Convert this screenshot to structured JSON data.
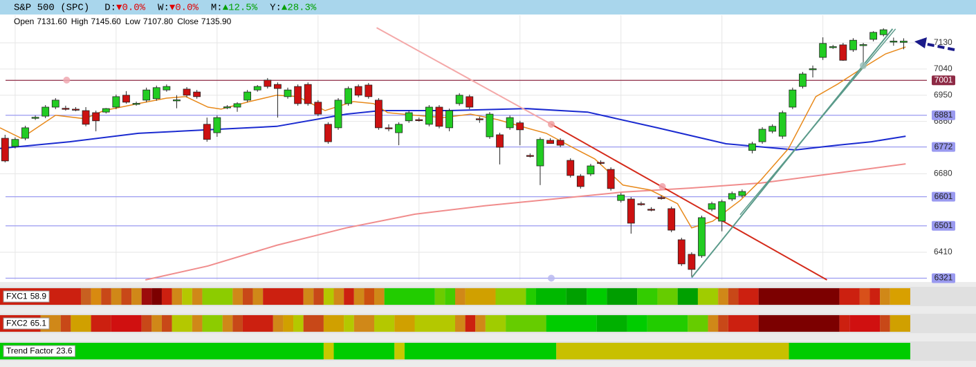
{
  "header": {
    "title": "S&P 500 (SPC)",
    "changes": [
      {
        "label": "D:",
        "arrow": "▼",
        "value": "0.0%",
        "color": "#e00000"
      },
      {
        "label": "W:",
        "arrow": "▼",
        "value": "0.0%",
        "color": "#e00000"
      },
      {
        "label": "M:",
        "arrow": "▲",
        "value": "12.5%",
        "color": "#00a000"
      },
      {
        "label": "Y:",
        "arrow": "▲",
        "value": "28.3%",
        "color": "#00a000"
      }
    ]
  },
  "ohlc": [
    {
      "label": "Open",
      "value": "7131.60"
    },
    {
      "label": "High",
      "value": "7145.60"
    },
    {
      "label": "Low",
      "value": "7107.80"
    },
    {
      "label": "Close",
      "value": "7135.90"
    }
  ],
  "chart_data": {
    "type": "candlestick",
    "xlim": [
      -0.5,
      91.3
    ],
    "ylim": [
      6315,
      7225
    ],
    "yticks": [
      6410,
      6680,
      6860,
      6950,
      7040,
      7130
    ],
    "grid": true,
    "xgrid": [
      1,
      11,
      21,
      31,
      41,
      51,
      61,
      71,
      81
    ],
    "up_color": "#22cc22",
    "down_color": "#cc1111",
    "open": [
      6802,
      6774,
      6802,
      6872,
      6878,
      6909,
      6905,
      6902,
      6897,
      6890,
      6892,
      6909,
      6950,
      6921,
      6933,
      6938,
      6968,
      6933,
      6971,
      6961,
      6850,
      6821,
      6909,
      6909,
      6933,
      6968,
      7002,
      6987,
      6945,
      6980,
      6987,
      6926,
      6850,
      6838,
      6921,
      6980,
      6985,
      6933,
      6838,
      6821,
      6862,
      6866,
      6850,
      6909,
      6838,
      6921,
      6945,
      6869,
      6807,
      6814,
      6838,
      6855,
      6743,
      6707,
      6795,
      6795,
      6726,
      6672,
      6679,
      6719,
      6695,
      6588,
      6593,
      6577,
      6558,
      6598,
      6560,
      6453,
      6403,
      6398,
      6558,
      6517,
      6593,
      6605,
      6760,
      6790,
      6826,
      6809,
      6909,
      6980,
      7040,
      7080,
      7116,
      7123,
      7106,
      7123,
      7142,
      7158,
      7135,
      7131.6
    ],
    "high": [
      6814,
      6805,
      6845,
      6880,
      6916,
      6940,
      6914,
      6909,
      6909,
      6897,
      6906,
      6952,
      6964,
      6928,
      6976,
      6983,
      6987,
      6950,
      6978,
      6968,
      6873,
      6880,
      6916,
      6926,
      6968,
      6985,
      7009,
      6994,
      6976,
      6987,
      6994,
      6933,
      6857,
      6940,
      6980,
      6987,
      6992,
      6940,
      6850,
      6857,
      6897,
      6873,
      6916,
      6916,
      6904,
      6957,
      6952,
      6876,
      6892,
      6821,
      6880,
      6862,
      6750,
      6805,
      6802,
      6802,
      6733,
      6679,
      6714,
      6726,
      6702,
      6614,
      6600,
      6584,
      6565,
      6605,
      6567,
      6460,
      6410,
      6536,
      6584,
      6591,
      6619,
      6626,
      6790,
      6840,
      6850,
      6897,
      6976,
      7030,
      7052,
      7149,
      7123,
      7130,
      7146,
      7130,
      7170,
      7180,
      7148,
      7145.6
    ],
    "low": [
      6719,
      6767,
      6795,
      6865,
      6871,
      6902,
      6897,
      6895,
      6843,
      6826,
      6887,
      6902,
      6921,
      6914,
      6926,
      6931,
      6962,
      6905,
      6943,
      6938,
      6790,
      6807,
      6902,
      6893,
      6926,
      6962,
      6973,
      6873,
      6938,
      6914,
      6914,
      6878,
      6783,
      6831,
      6914,
      6943,
      6938,
      6831,
      6826,
      6778,
      6855,
      6859,
      6843,
      6836,
      6826,
      6914,
      6902,
      6855,
      6800,
      6712,
      6831,
      6778,
      6736,
      6641,
      6783,
      6771,
      6667,
      6629,
      6672,
      6712,
      6622,
      6581,
      6474,
      6570,
      6551,
      6591,
      6479,
      6363,
      6327,
      6391,
      6551,
      6482,
      6586,
      6598,
      6750,
      6783,
      6819,
      6800,
      6902,
      6973,
      7011,
      7071,
      7109,
      7068,
      7099,
      7052,
      7135,
      7152,
      7120,
      7107.8
    ],
    "close": [
      6724,
      6798,
      6838,
      6874,
      6909,
      6933,
      6904,
      6901,
      6850,
      6862,
      6904,
      6945,
      6926,
      6922,
      6968,
      6976,
      6980,
      6934,
      6950,
      6945,
      6798,
      6873,
      6910,
      6921,
      6961,
      6980,
      6980,
      6973,
      6968,
      6921,
      6921,
      6885,
      6790,
      6933,
      6973,
      6950,
      6945,
      6838,
      6837,
      6850,
      6890,
      6865,
      6909,
      6843,
      6897,
      6950,
      6909,
      6868,
      6885,
      6771,
      6873,
      6831,
      6742,
      6798,
      6784,
      6778,
      6674,
      6636,
      6707,
      6718,
      6629,
      6607,
      6510,
      6576,
      6557,
      6597,
      6486,
      6370,
      6351,
      6529,
      6577,
      6584,
      6612,
      6619,
      6783,
      6833,
      6843,
      6890,
      6968,
      7023,
      7041,
      7128,
      7117,
      7070,
      7139,
      7124,
      7166,
      7175,
      7136,
      7135.9
    ],
    "levels": [
      {
        "value": 7001,
        "color": "#8e2a45",
        "text_color": "#ffffff"
      },
      {
        "value": 6881,
        "color": "#9a9af0",
        "text_color": "#222222"
      },
      {
        "value": 6772,
        "color": "#9a9af0",
        "text_color": "#222222"
      },
      {
        "value": 6601,
        "color": "#9a9af0",
        "text_color": "#222222"
      },
      {
        "value": 6501,
        "color": "#9a9af0",
        "text_color": "#222222"
      },
      {
        "value": 6321,
        "color": "#9a9af0",
        "text_color": "#222222"
      }
    ],
    "lines": [
      {
        "color": "#f08c8c",
        "width": 2,
        "x": [
          13.9,
          20.1,
          26.9,
          33.8,
          40.6,
          47.5,
          54.3,
          61.2,
          68,
          74.9,
          81.7,
          89.2
        ],
        "y": [
          6315,
          6363,
          6434,
          6494,
          6541,
          6570,
          6593,
          6617,
          6631,
          6648,
          6679,
          6714
        ]
      },
      {
        "color": "#1a2ad0",
        "width": 2,
        "x": [
          -0.5,
          6.4,
          13.2,
          20.1,
          26.9,
          33.8,
          37.2,
          44,
          51.6,
          57.7,
          64.6,
          71.4,
          78.3,
          82.4,
          85.8,
          89.2
        ],
        "y": [
          6767,
          6790,
          6819,
          6831,
          6843,
          6885,
          6897,
          6897,
          6904,
          6892,
          6838,
          6783,
          6762,
          6778,
          6790,
          6809
        ]
      },
      {
        "color": "#e8891a",
        "width": 1.5,
        "x": [
          -0.5,
          1.6,
          5,
          7.9,
          9.8,
          13.2,
          16,
          17.9,
          20.1,
          21.4,
          24.2,
          26.9,
          29,
          31.7,
          34.5,
          36.5,
          37.9,
          40.6,
          43.4,
          46.1,
          48.8,
          51.6,
          53.6,
          56.4,
          58.4,
          61.2,
          63.9,
          66.6,
          68,
          70.1,
          72.8,
          74.9,
          77.6,
          80.3,
          82.4,
          85.1,
          87.2,
          89.2
        ],
        "y": [
          6838,
          6802,
          6881,
          6869,
          6897,
          6921,
          6940,
          6945,
          6909,
          6902,
          6928,
          6950,
          6945,
          6897,
          6928,
          6921,
          6890,
          6881,
          6873,
          6885,
          6866,
          6838,
          6819,
          6767,
          6731,
          6641,
          6624,
          6577,
          6494,
          6517,
          6588,
          6660,
          6767,
          6945,
          6987,
          7047,
          7092,
          7116
        ]
      },
      {
        "color": "#f4a8a8",
        "width": 2,
        "x": [
          36.8,
          54.1
        ],
        "y": [
          7182,
          6850
        ]
      },
      {
        "color": "#d42a1a",
        "width": 2,
        "x": [
          54.1,
          81.4
        ],
        "y": [
          6850,
          6315
        ]
      },
      {
        "color": "#5a9a8a",
        "width": 2,
        "x": [
          68,
          87.9
        ],
        "y": [
          6323,
          7178
        ]
      },
      {
        "color": "#5a9a8a",
        "width": 1.5,
        "x": [
          72.8,
          88.2
        ],
        "y": [
          6539,
          7178
        ]
      }
    ],
    "markers": [
      {
        "x": 6.1,
        "y": 7002,
        "color": "#f0a8b0"
      },
      {
        "x": 54.1,
        "y": 6850,
        "color": "#f0a0a0"
      },
      {
        "x": 65.1,
        "y": 6636,
        "color": "#f0a0a8"
      },
      {
        "x": 54.1,
        "y": 6321,
        "color": "#b8b8f0"
      },
      {
        "x": 85,
        "y": 7052,
        "color": "#9ac0b8"
      }
    ]
  },
  "indicators": [
    {
      "name": "FXC1",
      "value": 58.9,
      "runs": [
        [
          8,
          "#cc2010"
        ],
        [
          1,
          "#c86020"
        ],
        [
          1,
          "#d88a10"
        ],
        [
          1,
          "#c84818"
        ],
        [
          1,
          "#d08818"
        ],
        [
          1,
          "#c84818"
        ],
        [
          1,
          "#d08818"
        ],
        [
          1,
          "#9c0c0c"
        ],
        [
          1,
          "#7c0000"
        ],
        [
          1,
          "#cc2010"
        ],
        [
          1,
          "#d08818"
        ],
        [
          1,
          "#b4c800"
        ],
        [
          1,
          "#d08818"
        ],
        [
          3,
          "#8ccc00"
        ],
        [
          1,
          "#d08818"
        ],
        [
          1,
          "#c84818"
        ],
        [
          1,
          "#d08818"
        ],
        [
          4,
          "#cc2010"
        ],
        [
          1,
          "#d08818"
        ],
        [
          1,
          "#c84818"
        ],
        [
          1,
          "#b4c800"
        ],
        [
          1,
          "#d08818"
        ],
        [
          1,
          "#cc2010"
        ],
        [
          1,
          "#d08818"
        ],
        [
          1,
          "#cc5010"
        ],
        [
          1,
          "#d08818"
        ],
        [
          5,
          "#22cc00"
        ],
        [
          1,
          "#6ccc00"
        ],
        [
          1,
          "#44cc00"
        ],
        [
          1,
          "#d08818"
        ],
        [
          3,
          "#d0a000"
        ],
        [
          3,
          "#8ccc00"
        ],
        [
          1,
          "#22cc00"
        ],
        [
          3,
          "#00b800"
        ],
        [
          2,
          "#00a000"
        ],
        [
          2,
          "#00cc00"
        ],
        [
          3,
          "#009e00"
        ],
        [
          2,
          "#33cc00"
        ],
        [
          2,
          "#66cc00"
        ],
        [
          2,
          "#00a000"
        ],
        [
          2,
          "#a0cc00"
        ],
        [
          1,
          "#d08818"
        ],
        [
          1,
          "#c84818"
        ],
        [
          2,
          "#cc2010"
        ],
        [
          8,
          "#7c0000"
        ],
        [
          2,
          "#cc2010"
        ],
        [
          1,
          "#d8501a"
        ],
        [
          1,
          "#cc2010"
        ],
        [
          1,
          "#d08818"
        ],
        [
          2,
          "#d8a000"
        ]
      ]
    },
    {
      "name": "FXC2",
      "value": 65.1,
      "runs": [
        [
          4,
          "#cc2010"
        ],
        [
          2,
          "#d08818"
        ],
        [
          1,
          "#c84818"
        ],
        [
          2,
          "#d0a000"
        ],
        [
          2,
          "#cc2010"
        ],
        [
          3,
          "#d01010"
        ],
        [
          1,
          "#c84818"
        ],
        [
          1,
          "#d08818"
        ],
        [
          1,
          "#c84818"
        ],
        [
          2,
          "#b4c800"
        ],
        [
          1,
          "#d08818"
        ],
        [
          2,
          "#8ccc00"
        ],
        [
          1,
          "#d08818"
        ],
        [
          1,
          "#c84818"
        ],
        [
          3,
          "#cc2010"
        ],
        [
          1,
          "#d08818"
        ],
        [
          1,
          "#d0a000"
        ],
        [
          1,
          "#b4c800"
        ],
        [
          2,
          "#c84818"
        ],
        [
          2,
          "#d0a000"
        ],
        [
          1,
          "#b4c800"
        ],
        [
          2,
          "#d08818"
        ],
        [
          2,
          "#b4c800"
        ],
        [
          2,
          "#d0a000"
        ],
        [
          4,
          "#b4c800"
        ],
        [
          1,
          "#d08818"
        ],
        [
          1,
          "#cc2010"
        ],
        [
          1,
          "#d08818"
        ],
        [
          2,
          "#a0cc00"
        ],
        [
          4,
          "#66cc00"
        ],
        [
          5,
          "#00cc00"
        ],
        [
          3,
          "#00b000"
        ],
        [
          2,
          "#00cc00"
        ],
        [
          4,
          "#22cc00"
        ],
        [
          2,
          "#66cc00"
        ],
        [
          1,
          "#d08818"
        ],
        [
          1,
          "#c84818"
        ],
        [
          3,
          "#cc2010"
        ],
        [
          8,
          "#7c0000"
        ],
        [
          1,
          "#cc2010"
        ],
        [
          3,
          "#d01010"
        ],
        [
          1,
          "#c84818"
        ],
        [
          2,
          "#d0a000"
        ]
      ]
    },
    {
      "name": "Trend Factor",
      "value": 23.6,
      "runs": [
        [
          32,
          "#00cc00"
        ],
        [
          1,
          "#c8c800"
        ],
        [
          6,
          "#00cc00"
        ],
        [
          1,
          "#c8c800"
        ],
        [
          15,
          "#00cc00"
        ],
        [
          23,
          "#c8c000"
        ],
        [
          12,
          "#00cc00"
        ]
      ]
    }
  ]
}
